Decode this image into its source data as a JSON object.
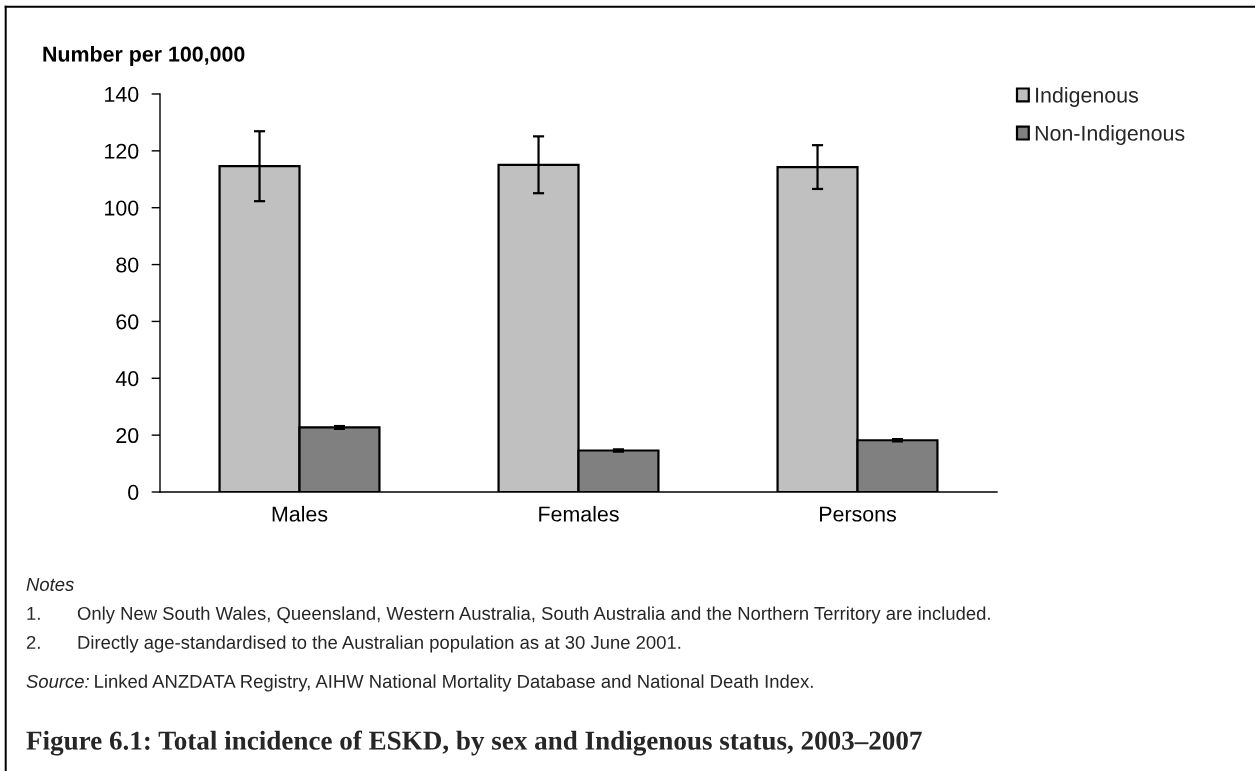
{
  "chart_data": {
    "type": "bar",
    "title": "Figure 6.1: Total incidence of ESKD, by sex and Indigenous status, 2003–2007",
    "ylabel": "Number per 100,000",
    "categories": [
      "Males",
      "Females",
      "Persons"
    ],
    "series": [
      {
        "name": "Indigenous",
        "color": "#c0c0c0",
        "values": [
          114.6,
          115.1,
          114.3
        ],
        "errors": [
          12.3,
          10.0,
          7.7
        ]
      },
      {
        "name": "Non-Indigenous",
        "color": "#808080",
        "values": [
          22.7,
          14.6,
          18.2
        ],
        "errors": [
          0.5,
          0.4,
          0.4
        ]
      }
    ],
    "ylim": [
      0,
      140
    ],
    "yticks": [
      0,
      20,
      40,
      60,
      80,
      100,
      120,
      140
    ],
    "legend": "top right",
    "annotations": [
      "Notes",
      "1. Only New South Wales, Queensland, Western Australia, South Australia and the Northern Territory are included.",
      "2. Directly age-standardised to the Australian population as at 30 June 2001.",
      "Source: Linked ANZDATA Registry, AIHW National Mortality Database and National Death Index."
    ]
  }
}
